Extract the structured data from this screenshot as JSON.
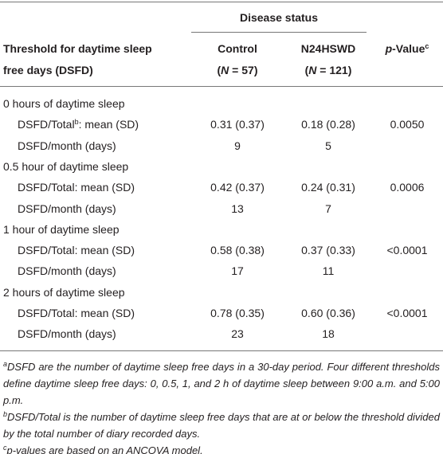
{
  "table": {
    "spanner": "Disease status",
    "header": {
      "threshold": [
        "Threshold for daytime sleep",
        "free days (DSFD)"
      ],
      "control": [
        "Control",
        "(",
        "N",
        " = 57)"
      ],
      "n24hswd": [
        "N24HSWD",
        "(",
        "N",
        " = 121)"
      ],
      "p_value": [
        "p",
        "-Value",
        "c"
      ]
    },
    "sections": [
      {
        "title": "0 hours of daytime sleep",
        "rows": [
          {
            "label": [
              "DSFD/Total",
              "b",
              ": mean (SD)"
            ],
            "control": "0.31 (0.37)",
            "n24hswd": "0.18 (0.28)",
            "p_value": "0.0050"
          },
          {
            "label": [
              "DSFD/month (days)"
            ],
            "control": 9,
            "n24hswd": 5
          }
        ]
      },
      {
        "title": "0.5 hour of daytime sleep",
        "rows": [
          {
            "label": [
              "DSFD/Total: mean (SD)"
            ],
            "control": "0.42 (0.37)",
            "n24hswd": "0.24 (0.31)",
            "p_value": "0.0006"
          },
          {
            "label": [
              "DSFD/month (days)"
            ],
            "control": 13,
            "n24hswd": 7
          }
        ]
      },
      {
        "title": "1 hour of daytime sleep",
        "rows": [
          {
            "label": [
              "DSFD/Total: mean (SD)"
            ],
            "control": "0.58 (0.38)",
            "n24hswd": "0.37 (0.33)",
            "p_value": "<0.0001"
          },
          {
            "label": [
              "DSFD/month (days)"
            ],
            "control": 17,
            "n24hswd": 11
          }
        ]
      },
      {
        "title": "2 hours of daytime sleep",
        "rows": [
          {
            "label": [
              "DSFD/Total: mean (SD)"
            ],
            "control": "0.78 (0.35)",
            "n24hswd": "0.60 (0.36)",
            "p_value": "<0.0001"
          },
          {
            "label": [
              "DSFD/month (days)"
            ],
            "control": 23,
            "n24hswd": 18
          }
        ]
      }
    ],
    "footnotes": [
      {
        "mark": "a",
        "text": "DSFD are the number of daytime sleep free days in a 30-day period. Four different thresholds define daytime sleep free days: 0, 0.5, 1, and 2 h of daytime sleep between 9:00 a.m. and 5:00 p.m."
      },
      {
        "mark": "b",
        "text": "DSFD/Total is the number of daytime sleep free days that are at or below the threshold divided by the total number of diary recorded days."
      },
      {
        "mark": "c",
        "text": "p-values are based on an ANCOVA model."
      }
    ]
  }
}
